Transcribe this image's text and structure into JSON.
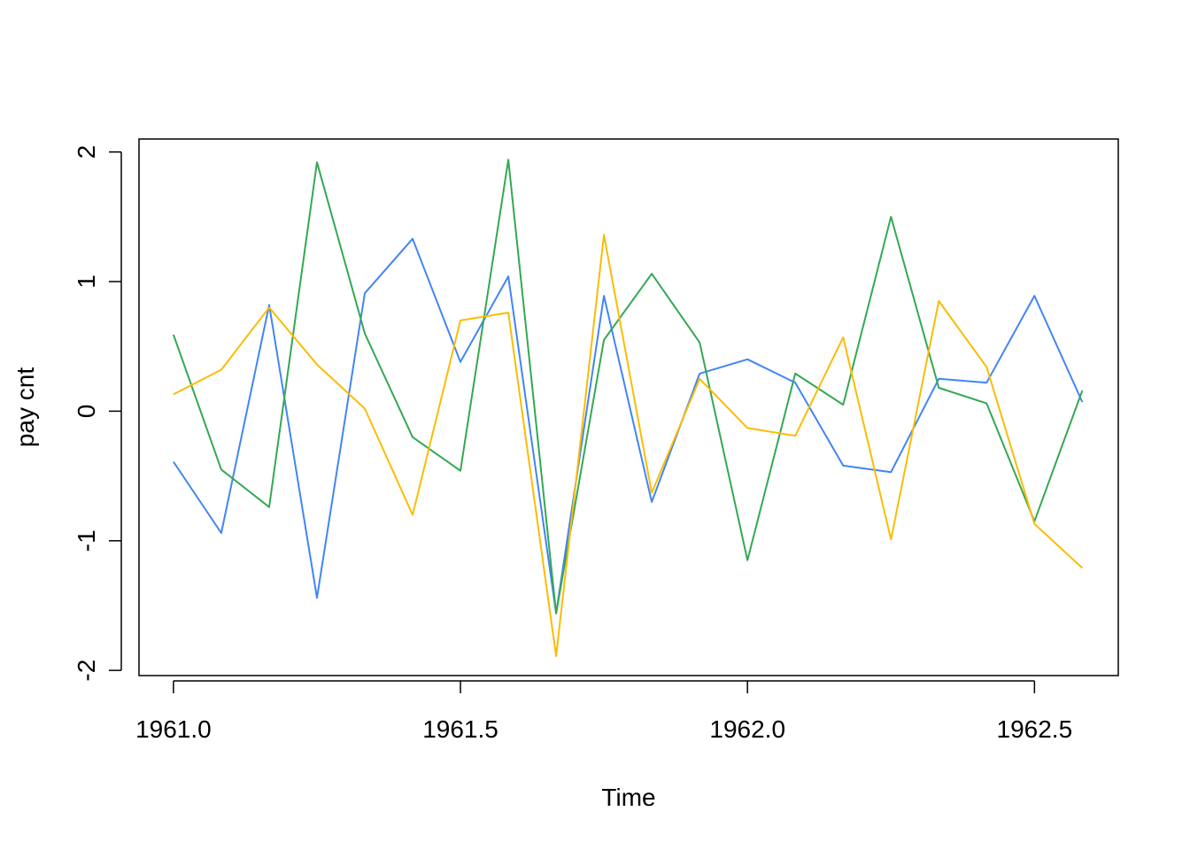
{
  "chart_data": {
    "type": "line",
    "title": "",
    "xlabel": "Time",
    "ylabel": "pay cnt",
    "xlim": [
      1960.94,
      1962.646
    ],
    "ylim": [
      -2.04,
      2.1
    ],
    "grid": false,
    "xticks": [
      1961.0,
      1961.5,
      1962.0,
      1962.5
    ],
    "xtick_labels": [
      "1961.0",
      "1961.5",
      "1962.0",
      "1962.5"
    ],
    "yticks": [
      -2,
      -1,
      0,
      1,
      2
    ],
    "ytick_labels": [
      "-2",
      "-1",
      "0",
      "1",
      "2"
    ],
    "x": [
      1961.0,
      1961.0833,
      1961.1667,
      1961.25,
      1961.3333,
      1961.4167,
      1961.5,
      1961.5833,
      1961.6667,
      1961.75,
      1961.8333,
      1961.9167,
      1962.0,
      1962.0833,
      1962.1667,
      1962.25,
      1962.3333,
      1962.4167,
      1962.5,
      1962.5833
    ],
    "series": [
      {
        "color": "#4285F4",
        "values": [
          -0.39,
          -0.94,
          0.82,
          -1.44,
          0.91,
          1.33,
          0.38,
          1.04,
          -1.56,
          0.89,
          -0.7,
          0.29,
          0.4,
          0.22,
          -0.42,
          -0.47,
          0.25,
          0.22,
          0.89,
          0.07
        ]
      },
      {
        "color": "#34A853",
        "values": [
          0.59,
          -0.45,
          -0.74,
          1.92,
          0.6,
          -0.2,
          -0.46,
          1.94,
          -1.56,
          0.55,
          1.06,
          0.53,
          -1.15,
          0.29,
          0.05,
          1.5,
          0.18,
          0.06,
          -0.85,
          0.16
        ]
      },
      {
        "color": "#FBBC04",
        "values": [
          0.13,
          0.32,
          0.8,
          0.36,
          0.02,
          -0.8,
          0.7,
          0.76,
          -1.89,
          1.36,
          -0.63,
          0.25,
          -0.13,
          -0.19,
          0.57,
          -0.99,
          0.85,
          0.34,
          -0.87,
          -1.21
        ]
      }
    ]
  }
}
